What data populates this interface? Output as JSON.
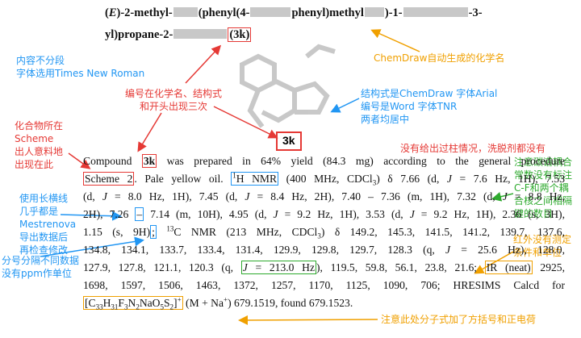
{
  "title": {
    "parts": [
      "(",
      "E",
      ")-2-methyl-",
      "(phenyl(4-",
      "phenyl)methyl",
      ")-1-",
      "-3-",
      "yl)propane-2-",
      "(3k)"
    ]
  },
  "structure_label": "3k",
  "paragraph": {
    "lines": [
      [
        "Compound ",
        {
          "box": "#e53935",
          "parts": [
            {
              "text": "3k",
              "style": "b"
            }
          ]
        },
        " was prepared in 64% yield (84.3 mg) according to the general procedure"
      ],
      [
        {
          "box": "#e53935",
          "parts": [
            "Scheme 2"
          ]
        },
        ". Pale yellow oil. ",
        {
          "box": "#2196f3",
          "parts": [
            {
              "text": "1",
              "style": "sup"
            },
            "H NMR"
          ]
        },
        " (400 MHz, CDCl",
        {
          "text": "3",
          "style": "sub"
        },
        ") δ 7.66 (d, ",
        {
          "text": "J",
          "style": "i"
        },
        " = 7.6 Hz, 1H), 7.53"
      ],
      [
        "(d, ",
        {
          "text": "J",
          "style": "i"
        },
        " = 8.0 Hz, 1H), 7.45 (d, ",
        {
          "text": "J",
          "style": "i"
        },
        " = 8.4 Hz, 2H), 7.40 – 7.36 (m, 1H), 7.32 (d, ",
        {
          "text": "J",
          "style": "i"
        },
        " = 8.8 Hz,"
      ],
      [
        "2H), 7.26 ",
        {
          "box": "#2196f3",
          "parts": [
            "–"
          ]
        },
        " 7.14 (m, 10H), 4.95 (d, ",
        {
          "text": "J",
          "style": "i"
        },
        " = 9.2 Hz, 1H), 3.53 (d, ",
        {
          "text": "J",
          "style": "i"
        },
        " = 9.2 Hz, 1H), 2.36 (s, 3H),"
      ],
      [
        "1.15 (s, 9H)",
        {
          "box": "#2196f3",
          "parts": [
            ";"
          ]
        },
        " ",
        {
          "text": "13",
          "style": "sup"
        },
        "C NMR (213 MHz, CDCl",
        {
          "text": "3",
          "style": "sub"
        },
        ") δ 149.2, 145.3, 141.5, 141.2, 139.7, 137.6,"
      ],
      [
        "134.8, 134.1, 133.7, 133.4, 131.4, 129.9, 129.8, 129.7, 128.3 (q, ",
        {
          "text": "J",
          "style": "i"
        },
        " = 25.6 Hz), 128.0,"
      ],
      [
        "127.9, 127.8, 121.1, 120.3 (q, ",
        {
          "box": "#2eaa2e",
          "parts": [
            {
              "text": "J",
              "style": "i"
            },
            " = 213.0 Hz"
          ]
        },
        "), 119.5, 59.8, 56.1, 23.8, 21.6; ",
        {
          "box": "#f0a000",
          "parts": [
            "IR (neat)"
          ]
        },
        " 2925,"
      ],
      [
        "1698, 1597, 1506, 1463, 1372, 1257, 1170, 1125, 1090, 706; HRESIMS Calcd for"
      ],
      [
        {
          "box": "#f0a000",
          "parts": [
            "[C",
            {
              "text": "33",
              "style": "sub"
            },
            "H",
            {
              "text": "31",
              "style": "sub"
            },
            "F",
            {
              "text": "3",
              "style": "sub"
            },
            "N",
            {
              "text": "2",
              "style": "sub"
            },
            "NaO",
            {
              "text": "5",
              "style": "sub"
            },
            "S",
            {
              "text": "2",
              "style": "sub"
            },
            "]",
            {
              "text": "+",
              "style": "sup"
            }
          ]
        },
        " (M + Na",
        {
          "text": "+",
          "style": "sup"
        },
        ") 679.1519, found 679.1523."
      ]
    ]
  },
  "notes": {
    "chemdraw": [
      "ChemDraw自动生成的化学名"
    ],
    "font": [
      "内容不分段",
      "字体选用Times New Roman"
    ],
    "label": [
      "编号在化学名、结构式",
      "和开头出现三次"
    ],
    "structure": [
      "结构式是ChemDraw 字体Arial",
      "编号是Word 字体TNR",
      "两者均居中"
    ],
    "scheme": [
      "化合物所在",
      "Scheme",
      "出人意料地",
      "出现在此"
    ],
    "column": [
      "没有给出过柱情况，洗脱剂都没有"
    ],
    "coupling": [
      "注意碳谱耦合",
      "常数没有标注",
      "C-F和两个耦",
      "合核之间相隔",
      "键的数目"
    ],
    "dash": [
      "使用长横线",
      "几乎都是",
      "Mestrenova",
      "导出数据后",
      "再检查修改"
    ],
    "ir": [
      "红外没有测定",
      "条件和单位"
    ],
    "semicolon": [
      "分号分隔不同数据",
      "没有ppm作单位"
    ],
    "formula": [
      "注意此处分子式加了方括号和正电荷"
    ]
  }
}
